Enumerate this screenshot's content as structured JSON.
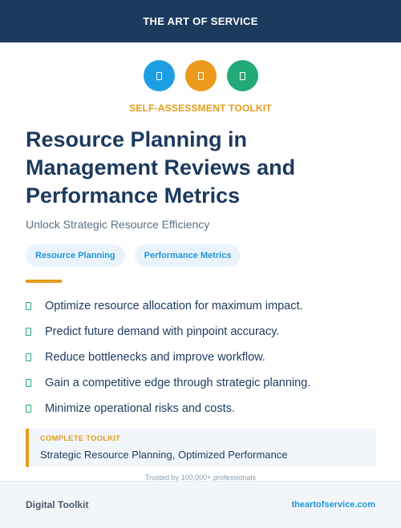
{
  "header": {
    "brand": "THE ART OF SERVICE"
  },
  "icons": [
    {
      "name": "blue-icon",
      "color": "#1e9ee2"
    },
    {
      "name": "orange-icon",
      "color": "#eb9a1c"
    },
    {
      "name": "green-icon",
      "color": "#22aa78"
    }
  ],
  "kicker": "SELF-ASSESSMENT TOOLKIT",
  "title_lines": [
    "Resource Planning in",
    "Management Reviews and",
    "Performance Metrics"
  ],
  "subtitle": "Unlock Strategic Resource Efficiency",
  "tags": [
    "Resource Planning",
    "Performance Metrics"
  ],
  "features": [
    "Optimize resource allocation for maximum impact.",
    "Predict future demand with pinpoint accuracy.",
    "Reduce bottlenecks and improve workflow.",
    "Gain a competitive edge through strategic planning.",
    "Minimize operational risks and costs."
  ],
  "callout": {
    "label": "COMPLETE TOOLKIT",
    "text": "Strategic Resource Planning, Optimized Performance"
  },
  "trusted": "Trusted by 100,000+ professionals",
  "footer": {
    "left": "Digital Toolkit",
    "right": "theartofservice.com"
  }
}
